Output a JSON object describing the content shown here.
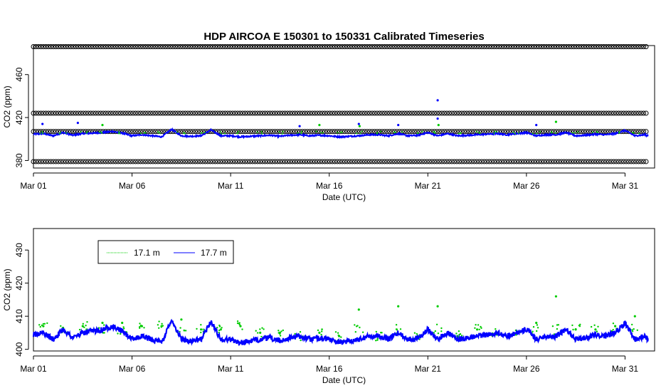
{
  "chart_data": [
    {
      "type": "scatter",
      "title": "HDP   AIRCOA  E   150301  to  150331   Calibrated Timeseries",
      "xlabel": "Date (UTC)",
      "ylabel": "CO2 (ppm)",
      "xlim": [
        "2015-03-01T00:00",
        "2015-04-01T12:00"
      ],
      "ylim": [
        373,
        487
      ],
      "x_ticks": [
        {
          "date": "2015-03-01",
          "label": "Mar 01"
        },
        {
          "date": "2015-03-06",
          "label": "Mar 06"
        },
        {
          "date": "2015-03-11",
          "label": "Mar 11"
        },
        {
          "date": "2015-03-16",
          "label": "Mar 16"
        },
        {
          "date": "2015-03-21",
          "label": "Mar 21"
        },
        {
          "date": "2015-03-26",
          "label": "Mar 26"
        },
        {
          "date": "2015-03-31",
          "label": "Mar 31"
        }
      ],
      "y_ticks": [
        380,
        420,
        460
      ],
      "grid": false,
      "reference_bands": [
        {
          "name": "",
          "value": 486,
          "color": "#000000"
        },
        {
          "name": "",
          "value": 424,
          "color": "#000000"
        },
        {
          "name": "",
          "value": 407,
          "color": "#000000"
        },
        {
          "name": "",
          "value": 379,
          "color": "#000000"
        }
      ],
      "outliers": [
        {
          "date": "2015-03-01T11:00",
          "value": 414,
          "color": "#0000ff"
        },
        {
          "date": "2015-03-03T06:00",
          "value": 415,
          "color": "#0000ff"
        },
        {
          "date": "2015-03-04T12:00",
          "value": 413,
          "color": "#00cc00"
        },
        {
          "date": "2015-03-14T12:00",
          "value": 412,
          "color": "#0000ff"
        },
        {
          "date": "2015-03-15T12:00",
          "value": 413,
          "color": "#00cc00"
        },
        {
          "date": "2015-03-17T12:00",
          "value": 414,
          "color": "#0000ff"
        },
        {
          "date": "2015-03-17T13:00",
          "value": 412,
          "color": "#00cc00"
        },
        {
          "date": "2015-03-19T12:00",
          "value": 413,
          "color": "#0000ff"
        },
        {
          "date": "2015-03-21T12:00",
          "value": 436,
          "color": "#0000ff"
        },
        {
          "date": "2015-03-21T12:00",
          "value": 419,
          "color": "#0000ff"
        },
        {
          "date": "2015-03-21T13:00",
          "value": 413,
          "color": "#00cc00"
        },
        {
          "date": "2015-03-26T12:00",
          "value": 413,
          "color": "#0000ff"
        },
        {
          "date": "2015-03-27T12:00",
          "value": 416,
          "color": "#00cc00"
        }
      ]
    },
    {
      "type": "line",
      "title": "",
      "xlabel": "Date (UTC)",
      "ylabel": "CO2 (ppm)",
      "xlim": [
        "2015-03-01T00:00",
        "2015-04-01T12:00"
      ],
      "ylim": [
        399.5,
        436.5
      ],
      "x_ticks": [
        {
          "date": "2015-03-01",
          "label": "Mar 01"
        },
        {
          "date": "2015-03-06",
          "label": "Mar 06"
        },
        {
          "date": "2015-03-11",
          "label": "Mar 11"
        },
        {
          "date": "2015-03-16",
          "label": "Mar 16"
        },
        {
          "date": "2015-03-21",
          "label": "Mar 21"
        },
        {
          "date": "2015-03-26",
          "label": "Mar 26"
        },
        {
          "date": "2015-03-31",
          "label": "Mar 31"
        }
      ],
      "y_ticks": [
        400,
        410,
        420,
        430
      ],
      "grid": false,
      "legend": "top-left",
      "series": [
        {
          "name": "17.1 m",
          "color": "#00cc00",
          "x": [
            "2015-03-01T12:00",
            "2015-03-02T12:00",
            "2015-03-03T12:00",
            "2015-03-04T12:00",
            "2015-03-05T12:00",
            "2015-03-06T12:00",
            "2015-03-07T12:00",
            "2015-03-08T12:00",
            "2015-03-09T12:00",
            "2015-03-10T12:00",
            "2015-03-11T12:00",
            "2015-03-12T12:00",
            "2015-03-13T12:00",
            "2015-03-14T12:00",
            "2015-03-15T12:00",
            "2015-03-16T12:00",
            "2015-03-17T12:00",
            "2015-03-18T12:00",
            "2015-03-19T12:00",
            "2015-03-20T12:00",
            "2015-03-21T12:00",
            "2015-03-22T12:00",
            "2015-03-23T12:00",
            "2015-03-24T12:00",
            "2015-03-25T12:00",
            "2015-03-26T12:00",
            "2015-03-27T12:00",
            "2015-03-28T12:00",
            "2015-03-29T12:00",
            "2015-03-30T12:00",
            "2015-03-31T12:00"
          ],
          "values": [
            407,
            406.5,
            407,
            408,
            408,
            407,
            407,
            409,
            406,
            406,
            407,
            405,
            405,
            404,
            405,
            404,
            412,
            404,
            413,
            404,
            413,
            404,
            406,
            405,
            405,
            408,
            416,
            406,
            406,
            407,
            410
          ]
        },
        {
          "name": "17.7 m",
          "color": "#0000ff",
          "x": [
            "2015-03-01T00:00",
            "2015-03-01T12:00",
            "2015-03-02T00:00",
            "2015-03-02T12:00",
            "2015-03-03T00:00",
            "2015-03-03T12:00",
            "2015-03-04T00:00",
            "2015-03-04T12:00",
            "2015-03-05T00:00",
            "2015-03-05T12:00",
            "2015-03-06T00:00",
            "2015-03-06T12:00",
            "2015-03-07T00:00",
            "2015-03-07T12:00",
            "2015-03-08T00:00",
            "2015-03-08T12:00",
            "2015-03-09T00:00",
            "2015-03-09T12:00",
            "2015-03-10T00:00",
            "2015-03-10T12:00",
            "2015-03-11T00:00",
            "2015-03-11T12:00",
            "2015-03-12T00:00",
            "2015-03-12T12:00",
            "2015-03-13T00:00",
            "2015-03-13T12:00",
            "2015-03-14T00:00",
            "2015-03-14T12:00",
            "2015-03-15T00:00",
            "2015-03-15T12:00",
            "2015-03-16T00:00",
            "2015-03-16T12:00",
            "2015-03-17T00:00",
            "2015-03-17T12:00",
            "2015-03-18T00:00",
            "2015-03-18T12:00",
            "2015-03-19T00:00",
            "2015-03-19T12:00",
            "2015-03-20T00:00",
            "2015-03-20T12:00",
            "2015-03-21T00:00",
            "2015-03-21T12:00",
            "2015-03-22T00:00",
            "2015-03-22T12:00",
            "2015-03-23T00:00",
            "2015-03-23T12:00",
            "2015-03-24T00:00",
            "2015-03-24T12:00",
            "2015-03-25T00:00",
            "2015-03-25T12:00",
            "2015-03-26T00:00",
            "2015-03-26T12:00",
            "2015-03-27T00:00",
            "2015-03-27T12:00",
            "2015-03-28T00:00",
            "2015-03-28T12:00",
            "2015-03-29T00:00",
            "2015-03-29T12:00",
            "2015-03-30T00:00",
            "2015-03-30T12:00",
            "2015-03-31T00:00",
            "2015-03-31T12:00",
            "2015-04-01T00:00",
            "2015-04-01T04:00"
          ],
          "values": [
            404.5,
            405,
            403,
            406,
            403.5,
            405,
            405.5,
            406,
            407,
            405.5,
            403,
            404,
            403,
            402,
            409,
            403,
            402.5,
            403,
            408.5,
            403,
            403,
            402,
            402.5,
            403,
            403.5,
            402.5,
            403.5,
            404,
            403,
            403.5,
            403,
            402,
            402.5,
            403,
            404,
            404,
            403,
            405,
            403,
            403.5,
            406,
            403,
            405,
            403,
            403.5,
            404,
            404.5,
            405,
            404,
            405,
            406,
            403,
            404,
            404,
            406,
            403,
            403.5,
            404.5,
            404,
            405,
            408,
            403,
            404,
            403
          ]
        }
      ]
    }
  ]
}
